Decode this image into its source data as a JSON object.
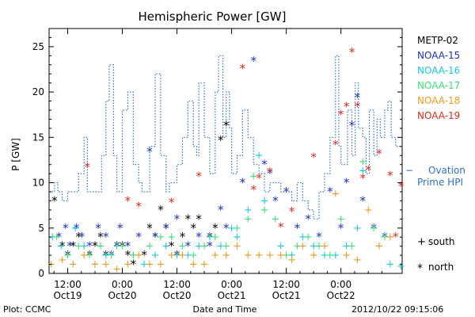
{
  "chart_data": {
    "type": "scatter",
    "title": "Hemispheric Power [GW]",
    "xlabel": "Date and Time",
    "ylabel": "P [GW]",
    "xlim": [
      0.33,
      3.56
    ],
    "ylim": [
      0,
      27
    ],
    "x_unit": "days from Oct19 00:00",
    "yticks": [
      0,
      5,
      10,
      15,
      20,
      25
    ],
    "xticks": [
      {
        "x": 0.5,
        "top": "12:00",
        "bottom": "Oct19"
      },
      {
        "x": 1.0,
        "top": "0:00",
        "bottom": "Oct20"
      },
      {
        "x": 1.5,
        "top": "12:00",
        "bottom": "Oct20"
      },
      {
        "x": 2.0,
        "top": "0:00",
        "bottom": "Oct21"
      },
      {
        "x": 2.5,
        "top": "12:00",
        "bottom": "Oct21"
      },
      {
        "x": 3.0,
        "top": "0:00",
        "bottom": "Oct22"
      }
    ],
    "legend": {
      "position": "right",
      "entries": [
        {
          "name": "METP-02",
          "color": "#000000"
        },
        {
          "name": "NOAA-15",
          "color": "#1c2fc8"
        },
        {
          "name": "NOAA-16",
          "color": "#18c8e0"
        },
        {
          "name": "NOAA-17",
          "color": "#3ce07a"
        },
        {
          "name": "NOAA-18",
          "color": "#f09a1c"
        },
        {
          "name": "NOAA-19",
          "color": "#e02b1c"
        }
      ],
      "ovation_label_1": "Ovation",
      "ovation_label_2": "Prime HPI",
      "ovation_dash": "−",
      "ovation_color": "#2d6fd6",
      "south_label": "south",
      "north_label": "north",
      "south_symbol": "+",
      "north_symbol": "*"
    },
    "ovation_prime_hpi": {
      "x": [
        0.33,
        0.38,
        0.41,
        0.45,
        0.5,
        0.55,
        0.6,
        0.65,
        0.68,
        0.72,
        0.75,
        0.78,
        0.81,
        0.85,
        0.88,
        0.92,
        0.95,
        1.0,
        1.05,
        1.1,
        1.15,
        1.18,
        1.2,
        1.25,
        1.3,
        1.35,
        1.4,
        1.43,
        1.46,
        1.5,
        1.55,
        1.6,
        1.65,
        1.68,
        1.7,
        1.75,
        1.8,
        1.82,
        1.85,
        1.88,
        1.92,
        1.95,
        1.98,
        2.0,
        2.05,
        2.1,
        2.15,
        2.2,
        2.25,
        2.3,
        2.35,
        2.4,
        2.45,
        2.5,
        2.55,
        2.6,
        2.65,
        2.7,
        2.75,
        2.8,
        2.85,
        2.9,
        2.95,
        2.98,
        3.0,
        3.03,
        3.06,
        3.1,
        3.13,
        3.16,
        3.2,
        3.23,
        3.26,
        3.3,
        3.33,
        3.36,
        3.4,
        3.43,
        3.46,
        3.5
      ],
      "y": [
        9,
        10,
        9,
        8,
        9,
        9,
        11,
        15,
        9,
        9,
        9,
        9,
        13,
        19,
        23,
        13,
        9,
        18,
        20,
        12,
        10,
        9,
        9,
        14,
        22,
        13,
        9,
        10,
        10,
        12,
        15,
        19,
        14,
        13,
        21,
        15,
        11,
        11,
        20,
        24,
        15,
        20,
        16,
        11,
        13,
        18,
        15,
        12,
        11,
        9,
        10,
        10,
        9,
        9,
        8,
        10,
        8,
        7,
        6,
        9,
        11,
        15,
        24,
        14,
        12,
        12,
        18,
        13,
        21,
        16,
        15,
        11,
        18,
        13,
        17,
        15,
        18,
        19,
        15,
        14
      ]
    },
    "series": [
      {
        "name": "METP-02",
        "symbol": "*",
        "x": [
          0.38,
          0.45,
          0.5,
          0.55,
          0.6,
          0.7,
          0.75,
          0.8,
          0.85,
          0.95,
          1.0,
          1.05,
          1.1,
          1.2,
          1.25,
          1.3,
          1.35,
          1.4,
          1.45,
          1.5,
          1.55,
          1.6,
          1.65,
          1.7,
          1.8,
          1.85,
          1.9,
          1.95
        ],
        "y": [
          8,
          3,
          2,
          3,
          4,
          2,
          3,
          4,
          2,
          3,
          3,
          2,
          1,
          2,
          5,
          4,
          7,
          5,
          3,
          2,
          4,
          6,
          5,
          6,
          4,
          5,
          14.7,
          16.3
        ]
      },
      {
        "name": "NOAA-15",
        "symbol": "*",
        "x": [
          0.42,
          0.48,
          0.52,
          0.58,
          0.63,
          0.7,
          0.78,
          0.85,
          0.9,
          0.98,
          1.05,
          1.15,
          1.25,
          1.3,
          1.4,
          1.5,
          1.6,
          1.7,
          1.8,
          1.9,
          1.95,
          2.1,
          2.2,
          2.3,
          2.35,
          2.4,
          2.5,
          2.6,
          2.7,
          2.8,
          2.9,
          3.0,
          3.05,
          3.1,
          3.15,
          3.2,
          3.3,
          3.4
        ],
        "y": [
          4,
          5,
          3,
          5,
          4,
          3,
          5,
          4,
          2,
          5,
          3,
          4,
          13.4,
          4,
          5,
          6,
          3,
          4,
          3,
          7,
          5,
          10,
          23.4,
          12,
          11,
          8,
          9,
          5,
          6,
          4,
          9,
          5,
          10,
          16.3,
          19.4,
          8,
          5,
          4
        ]
      },
      {
        "name": "NOAA-16",
        "symbol": "+",
        "x": [
          0.36,
          0.44,
          0.5,
          0.57,
          0.65,
          0.75,
          0.85,
          0.95,
          1.1,
          1.2,
          1.3,
          1.4,
          1.5,
          1.6,
          1.7,
          1.8,
          1.9,
          2.0,
          2.05,
          2.15,
          2.25,
          2.3,
          2.45,
          2.55,
          2.65,
          2.75,
          2.85,
          2.95,
          3.05,
          3.15,
          3.2,
          3.35,
          3.45,
          3.55
        ],
        "y": [
          4,
          3,
          2,
          5,
          3,
          1,
          2,
          3,
          2,
          1,
          2,
          3,
          2,
          2,
          3,
          4,
          3,
          5,
          4,
          7,
          13,
          8,
          3,
          2,
          4,
          3,
          2,
          2,
          3,
          5,
          11.3,
          3,
          1,
          0.8
        ]
      },
      {
        "name": "NOAA-17",
        "symbol": "+",
        "x": [
          0.4,
          0.5,
          0.6,
          0.7,
          0.8,
          0.9,
          1.0,
          1.1,
          1.25,
          1.35,
          1.45,
          1.55,
          1.65,
          1.75,
          1.85,
          1.95,
          2.05,
          2.15,
          2.2,
          2.3,
          2.4,
          2.5,
          2.6,
          2.7,
          2.8,
          2.9,
          3.0,
          3.1,
          3.2,
          3.3,
          3.4
        ],
        "y": [
          4,
          2,
          3,
          2,
          3,
          2,
          3,
          2,
          3,
          4,
          4,
          3,
          2,
          3,
          4,
          3,
          5,
          6,
          10.7,
          7,
          6,
          2,
          3,
          4,
          3,
          2,
          6,
          3,
          12.3,
          5,
          4
        ]
      },
      {
        "name": "NOAA-18",
        "symbol": "+",
        "x": [
          0.35,
          0.45,
          0.55,
          0.65,
          0.75,
          0.85,
          0.95,
          1.05,
          1.15,
          1.25,
          1.35,
          1.45,
          1.55,
          1.65,
          1.75,
          1.85,
          1.95,
          2.05,
          2.15,
          2.25,
          2.35,
          2.45,
          2.55,
          2.65,
          2.75,
          2.85,
          2.95,
          3.05,
          3.15,
          3.25,
          3.35,
          3.45
        ],
        "y": [
          1,
          1.5,
          1,
          2,
          1,
          1,
          0.5,
          1,
          2,
          1,
          1,
          2,
          2,
          1,
          1,
          2,
          2,
          3,
          2,
          2,
          2,
          2,
          1.5,
          3,
          2,
          3,
          8.8,
          2,
          1.5,
          7,
          3,
          4
        ]
      },
      {
        "name": "NOAA-19",
        "symbol": "*",
        "x": [
          0.68,
          1.05,
          1.15,
          1.45,
          1.7,
          2.1,
          2.2,
          2.25,
          2.35,
          2.45,
          2.55,
          2.75,
          2.95,
          3.0,
          3.05,
          3.1,
          3.15,
          3.2,
          3.25,
          3.35,
          3.45,
          3.5,
          3.55
        ],
        "y": [
          11.7,
          8,
          7.4,
          7.8,
          10.7,
          22.6,
          9.2,
          10.5,
          11.2,
          5.1,
          6.8,
          12.8,
          14.2,
          17.5,
          18.4,
          24.4,
          18.4,
          10.5,
          11.4,
          13.2,
          10.8,
          4,
          9.6
        ]
      }
    ],
    "footer_left": "Plot: CCMC",
    "footer_right": "2012/10/22 09:15:06"
  }
}
